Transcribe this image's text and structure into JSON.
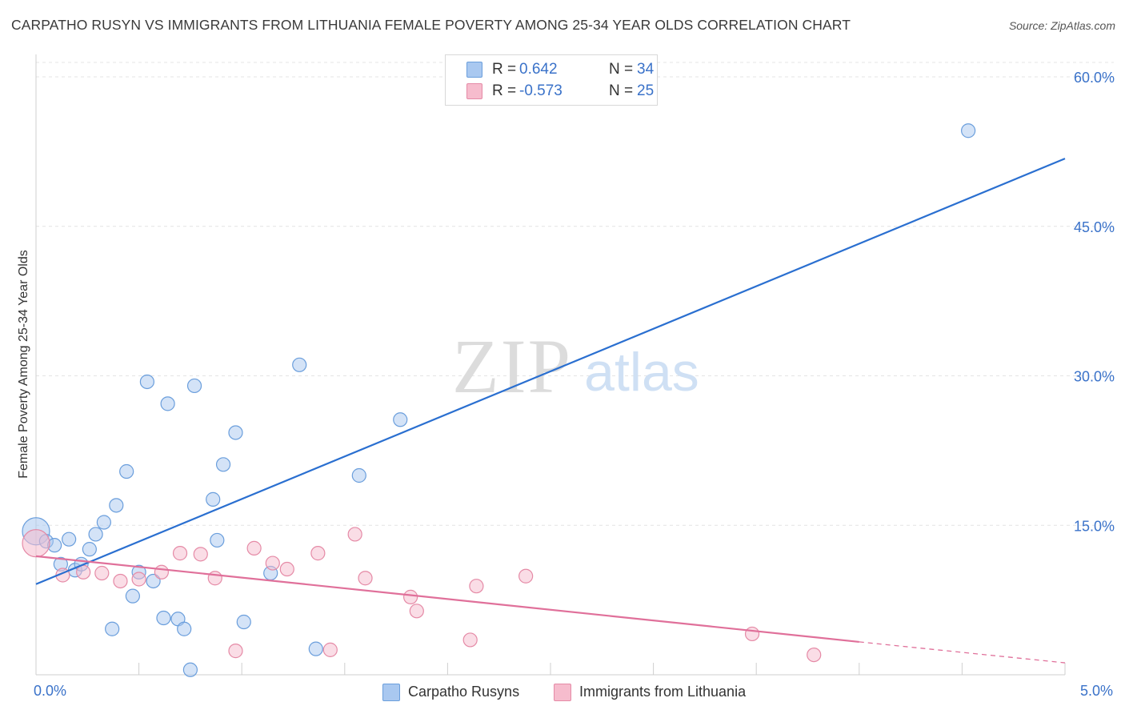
{
  "header": {
    "title": "CARPATHO RUSYN VS IMMIGRANTS FROM LITHUANIA FEMALE POVERTY AMONG 25-34 YEAR OLDS CORRELATION CHART",
    "source": "Source: ZipAtlas.com"
  },
  "watermark": {
    "zip": "ZIP",
    "atlas": "atlas"
  },
  "stats": {
    "rows": [
      {
        "r_label": "R =",
        "r_value": "0.642",
        "n_label": "N =",
        "n_value": "34",
        "color": "#a9c8f0",
        "border": "#6a9edc"
      },
      {
        "r_label": "R =",
        "r_value": "-0.573",
        "n_label": "N =",
        "n_value": "25",
        "color": "#f6bccd",
        "border": "#e58aa6"
      }
    ]
  },
  "legend": {
    "items": [
      {
        "label": "Carpatho Rusyns",
        "color": "#a9c8f0",
        "border": "#6a9edc"
      },
      {
        "label": "Immigrants from Lithuania",
        "color": "#f6bccd",
        "border": "#e58aa6"
      }
    ]
  },
  "chart_data": {
    "type": "scatter",
    "title": "CARPATHO RUSYN VS IMMIGRANTS FROM LITHUANIA FEMALE POVERTY AMONG 25-34 YEAR OLDS CORRELATION CHART",
    "xlabel": "",
    "ylabel": "Female Poverty Among 25-34 Year Olds",
    "xlim": [
      0,
      5
    ],
    "ylim": [
      0,
      60
    ],
    "x_tick_labels": [
      "0.0%",
      "5.0%"
    ],
    "y_ticks": [
      15,
      30,
      45,
      60
    ],
    "y_tick_labels": [
      "15.0%",
      "30.0%",
      "45.0%",
      "60.0%"
    ],
    "grid": true,
    "legend_position": "bottom",
    "series": [
      {
        "name": "Carpatho Rusyns",
        "color": "#6a9edc",
        "fill": "#a9c8f0",
        "trend_color": "#2a6fd0",
        "trend": {
          "x": [
            0,
            5
          ],
          "y": [
            9.1,
            51.8
          ]
        },
        "points": [
          [
            0.0,
            14.4
          ],
          [
            0.05,
            13.4
          ],
          [
            0.09,
            13.0
          ],
          [
            0.12,
            11.1
          ],
          [
            0.16,
            13.6
          ],
          [
            0.19,
            10.5
          ],
          [
            0.22,
            11.1
          ],
          [
            0.26,
            12.6
          ],
          [
            0.29,
            14.1
          ],
          [
            0.33,
            15.3
          ],
          [
            0.37,
            4.6
          ],
          [
            0.39,
            17.0
          ],
          [
            0.44,
            20.4
          ],
          [
            0.47,
            7.9
          ],
          [
            0.5,
            10.3
          ],
          [
            0.54,
            29.4
          ],
          [
            0.57,
            9.4
          ],
          [
            0.62,
            5.7
          ],
          [
            0.64,
            27.2
          ],
          [
            0.69,
            5.6
          ],
          [
            0.72,
            4.6
          ],
          [
            0.75,
            0.5
          ],
          [
            0.77,
            29.0
          ],
          [
            0.86,
            17.6
          ],
          [
            0.88,
            13.5
          ],
          [
            0.91,
            21.1
          ],
          [
            0.97,
            24.3
          ],
          [
            1.01,
            5.3
          ],
          [
            1.14,
            10.2
          ],
          [
            1.28,
            31.1
          ],
          [
            1.36,
            2.6
          ],
          [
            1.57,
            20.0
          ],
          [
            1.77,
            25.6
          ],
          [
            4.53,
            54.6
          ]
        ]
      },
      {
        "name": "Immigrants from Lithuania",
        "color": "#e58aa6",
        "fill": "#f6bccd",
        "trend_color": "#e0709a",
        "trend": {
          "x": [
            0,
            4.0
          ],
          "y": [
            11.9,
            3.3
          ]
        },
        "trend_extension": {
          "x": [
            4.0,
            5
          ],
          "y": [
            3.3,
            1.2
          ]
        },
        "points": [
          [
            0.0,
            13.2
          ],
          [
            0.13,
            10.0
          ],
          [
            0.23,
            10.3
          ],
          [
            0.32,
            10.2
          ],
          [
            0.41,
            9.4
          ],
          [
            0.5,
            9.6
          ],
          [
            0.61,
            10.3
          ],
          [
            0.7,
            12.2
          ],
          [
            0.8,
            12.1
          ],
          [
            0.87,
            9.7
          ],
          [
            0.97,
            2.4
          ],
          [
            1.06,
            12.7
          ],
          [
            1.15,
            11.2
          ],
          [
            1.22,
            10.6
          ],
          [
            1.37,
            12.2
          ],
          [
            1.43,
            2.5
          ],
          [
            1.55,
            14.1
          ],
          [
            1.6,
            9.7
          ],
          [
            1.82,
            7.8
          ],
          [
            1.85,
            6.4
          ],
          [
            2.11,
            3.5
          ],
          [
            2.14,
            8.9
          ],
          [
            2.38,
            9.9
          ],
          [
            3.48,
            4.1
          ],
          [
            3.78,
            2.0
          ]
        ]
      }
    ]
  }
}
